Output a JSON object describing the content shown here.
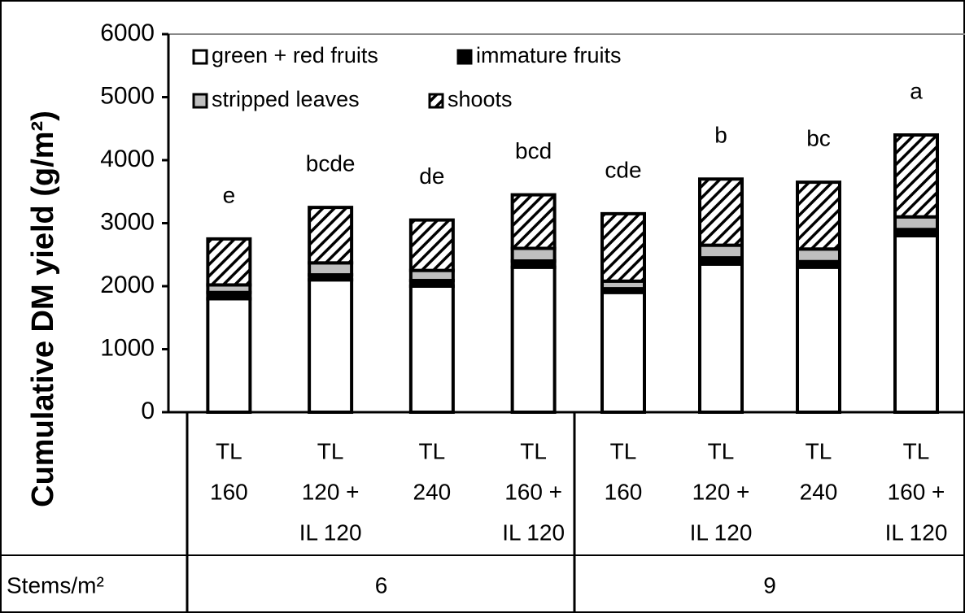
{
  "chart_data": {
    "type": "stacked-bar",
    "y_label": "Cumulative DM yield (g/m²)",
    "categories": [
      [
        "TL",
        "160"
      ],
      [
        "TL",
        "120 +",
        "IL 120"
      ],
      [
        "TL",
        "240"
      ],
      [
        "TL",
        "160 +",
        "IL 120"
      ],
      [
        "TL",
        "160"
      ],
      [
        "TL",
        "120 +",
        "IL 120"
      ],
      [
        "TL",
        "240"
      ],
      [
        "TL",
        "160 +",
        "IL 120"
      ]
    ],
    "group_label": "Stems/m²",
    "groups": [
      "6",
      "9"
    ],
    "series": [
      {
        "name": "green + red fruits",
        "color": "#ffffff",
        "values": [
          1800,
          2100,
          2000,
          2300,
          1900,
          2350,
          2300,
          2800
        ]
      },
      {
        "name": "immature fruits",
        "color": "#000000",
        "values": [
          100,
          80,
          90,
          100,
          60,
          100,
          90,
          100
        ]
      },
      {
        "name": "stripped leaves",
        "color": "#bfbfbf",
        "values": [
          120,
          190,
          160,
          200,
          120,
          200,
          200,
          200
        ]
      },
      {
        "name": "shoots",
        "color": "#000000",
        "pattern": "diagonal-hatch",
        "values": [
          730,
          880,
          800,
          850,
          1070,
          1050,
          1060,
          1300
        ]
      }
    ],
    "annotations": [
      "e",
      "bcde",
      "de",
      "bcd",
      "cde",
      "b",
      "bc",
      "a"
    ],
    "ylim": [
      0,
      6000
    ],
    "yticks": [
      0,
      1000,
      2000,
      3000,
      4000,
      5000,
      6000
    ],
    "grid": false,
    "legend": "top-left"
  }
}
